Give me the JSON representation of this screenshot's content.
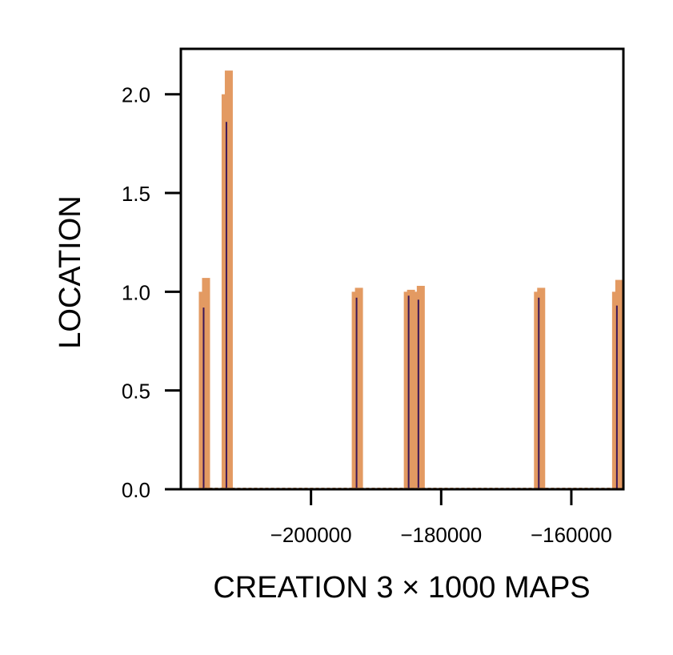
{
  "chart_data": {
    "type": "bar",
    "xlabel": "CREATION 3 × 1000  MAPS",
    "ylabel": "LOCATION",
    "xlim": [
      -220000,
      -152000
    ],
    "ylim": [
      0,
      2.23
    ],
    "x_ticks": [
      {
        "value": -200000,
        "label": "−200000"
      },
      {
        "value": -180000,
        "label": "−180000"
      },
      {
        "value": -160000,
        "label": "−160000"
      }
    ],
    "y_ticks": [
      {
        "value": 0.0,
        "label": "0.0"
      },
      {
        "value": 0.5,
        "label": "0.5"
      },
      {
        "value": 1.0,
        "label": "1.0"
      },
      {
        "value": 1.5,
        "label": "1.5"
      },
      {
        "value": 2.0,
        "label": "2.0"
      }
    ],
    "grid": false,
    "colors": {
      "bar": "#e39a62",
      "line": "#3b1657",
      "baseline": "#c48a5a"
    },
    "series": [
      {
        "x": [
          -216500,
          -213000,
          -193000,
          -185000,
          -183500,
          -165000,
          -153000
        ],
        "values": [
          1.0,
          2.0,
          1.0,
          1.0,
          1.0,
          1.0,
          1.0
        ],
        "tops": [
          1.07,
          2.12,
          1.02,
          1.01,
          1.03,
          1.02,
          1.06
        ],
        "lines": [
          0.92,
          1.86,
          0.97,
          0.98,
          0.96,
          0.97,
          0.93
        ]
      }
    ]
  }
}
